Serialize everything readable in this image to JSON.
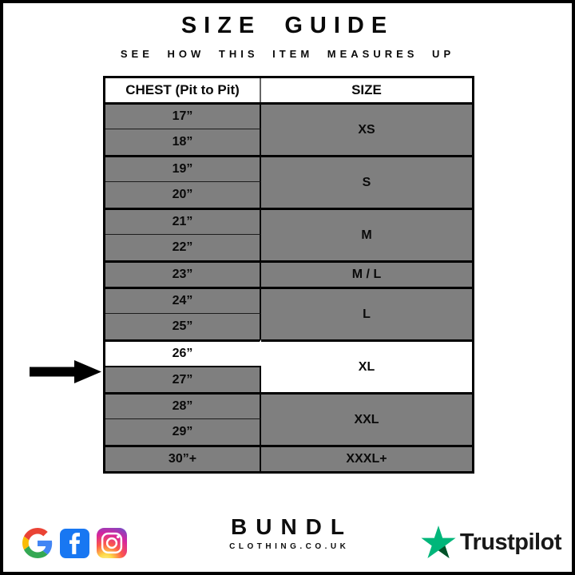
{
  "header": {
    "title": "SIZE GUIDE",
    "subtitle": "SEE HOW THIS ITEM MEASURES UP"
  },
  "table": {
    "columns": [
      "CHEST (Pit to Pit)",
      "SIZE"
    ],
    "groups": [
      {
        "measurements": [
          "17”",
          "18”"
        ],
        "size": "XS"
      },
      {
        "measurements": [
          "19”",
          "20”"
        ],
        "size": "S"
      },
      {
        "measurements": [
          "21”",
          "22”"
        ],
        "size": "M"
      },
      {
        "measurements": [
          "23”"
        ],
        "size": "M / L"
      },
      {
        "measurements": [
          "24”",
          "25”"
        ],
        "size": "L"
      },
      {
        "measurements": [
          "26”",
          "27”"
        ],
        "size": "XL"
      },
      {
        "measurements": [
          "28”",
          "29”"
        ],
        "size": "XXL"
      },
      {
        "measurements": [
          "30”+"
        ],
        "size": "XXXL+"
      }
    ],
    "highlight": {
      "measurements": [
        "26”"
      ],
      "size": "XL"
    }
  },
  "footer": {
    "social_icons": [
      "google-icon",
      "facebook-icon",
      "instagram-icon"
    ],
    "brand_name": "BUNDL",
    "brand_domain": "CLOTHING.CO.UK",
    "trustpilot_label": "Trustpilot"
  },
  "colors": {
    "cell_gray": "#7f7f7f",
    "highlight_white": "#ffffff",
    "border_black": "#000000",
    "trustpilot_green": "#00b67a",
    "trustpilot_dark_green": "#005128",
    "facebook_blue": "#1877f2"
  }
}
